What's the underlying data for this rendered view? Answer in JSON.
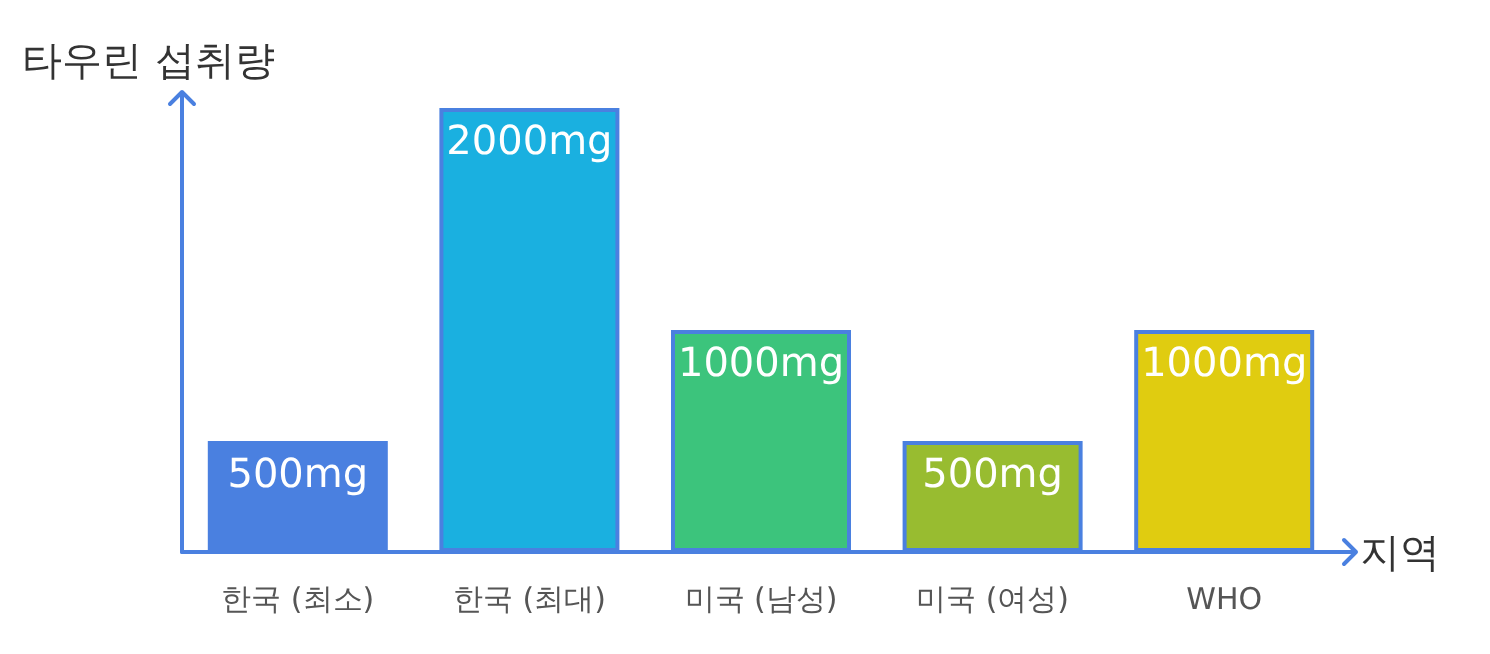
{
  "chart_data": {
    "type": "bar",
    "xlabel": "지역",
    "ylabel": "타우린 섭취량",
    "categories": [
      "한국 (최소)",
      "한국 (최대)",
      "미국 (남성)",
      "미국 (여성)",
      "WHO"
    ],
    "values": [
      500,
      2000,
      1000,
      500,
      1000
    ],
    "value_labels": [
      "500mg",
      "2000mg",
      "1000mg",
      "500mg",
      "1000mg"
    ],
    "colors": [
      "#4a80e0",
      "#1ab0e0",
      "#3cc47c",
      "#98bc30",
      "#e0cc10"
    ],
    "grid": false
  }
}
